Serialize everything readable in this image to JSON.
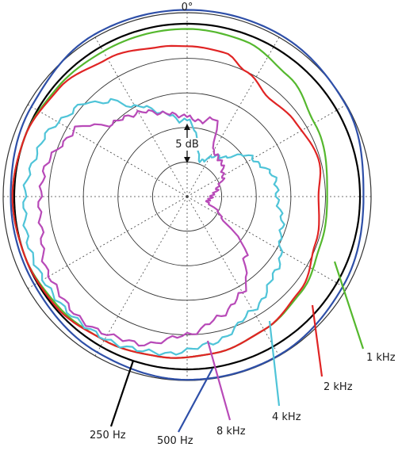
{
  "chart_data": {
    "type": "polar",
    "title": "",
    "angle_label": "0°",
    "scale_label": "5 dB",
    "grid": true,
    "rings": 5,
    "spokes": 12,
    "series": [
      {
        "name": "250 Hz",
        "color": "#000000",
        "values": [
          [
            0,
            5
          ],
          [
            30,
            5
          ],
          [
            60,
            5
          ],
          [
            90,
            5
          ],
          [
            120,
            5
          ],
          [
            150,
            5
          ],
          [
            180,
            5
          ],
          [
            210,
            5
          ],
          [
            240,
            5
          ],
          [
            270,
            5
          ],
          [
            300,
            5
          ],
          [
            330,
            5
          ]
        ]
      },
      {
        "name": "500 Hz",
        "color": "#2e4fa8",
        "values": [
          [
            0,
            5.4
          ],
          [
            30,
            5.4
          ],
          [
            60,
            5.3
          ],
          [
            90,
            5.1
          ],
          [
            120,
            5.2
          ],
          [
            150,
            5.3
          ],
          [
            180,
            5.3
          ],
          [
            210,
            5.2
          ],
          [
            240,
            5.1
          ],
          [
            270,
            5.1
          ],
          [
            300,
            5.2
          ],
          [
            330,
            5.4
          ]
        ]
      },
      {
        "name": "1 kHz",
        "color": "#55b82e",
        "values": [
          [
            0,
            4.85
          ],
          [
            20,
            4.8
          ],
          [
            40,
            4.55
          ],
          [
            60,
            4.25
          ],
          [
            90,
            4.05
          ],
          [
            110,
            4.1
          ],
          [
            130,
            4.3
          ],
          [
            150,
            4.45
          ],
          [
            170,
            4.6
          ],
          [
            190,
            4.7
          ],
          [
            210,
            4.8
          ],
          [
            230,
            4.9
          ],
          [
            250,
            5.0
          ],
          [
            270,
            5.05
          ],
          [
            290,
            5.0
          ],
          [
            310,
            4.9
          ],
          [
            330,
            4.85
          ],
          [
            350,
            4.85
          ]
        ]
      },
      {
        "name": "2 kHz",
        "color": "#e02424",
        "values": [
          [
            0,
            4.35
          ],
          [
            15,
            4.3
          ],
          [
            25,
            4.0
          ],
          [
            40,
            3.7
          ],
          [
            55,
            3.8
          ],
          [
            75,
            3.95
          ],
          [
            90,
            3.8
          ],
          [
            110,
            3.95
          ],
          [
            130,
            4.25
          ],
          [
            150,
            4.45
          ],
          [
            170,
            4.6
          ],
          [
            190,
            4.7
          ],
          [
            210,
            4.8
          ],
          [
            230,
            4.95
          ],
          [
            250,
            5.0
          ],
          [
            270,
            5.05
          ],
          [
            290,
            5.0
          ],
          [
            310,
            4.85
          ],
          [
            330,
            4.6
          ],
          [
            350,
            4.4
          ]
        ]
      },
      {
        "name": "4 kHz",
        "color": "#4fc4d8",
        "values": [
          [
            0,
            2.2
          ],
          [
            20,
            1.1
          ],
          [
            40,
            1.5
          ],
          [
            60,
            2.2
          ],
          [
            80,
            2.6
          ],
          [
            90,
            2.6
          ],
          [
            110,
            2.9
          ],
          [
            130,
            3.35
          ],
          [
            150,
            3.8
          ],
          [
            170,
            4.3
          ],
          [
            190,
            4.6
          ],
          [
            210,
            4.75
          ],
          [
            230,
            4.8
          ],
          [
            250,
            4.8
          ],
          [
            270,
            4.7
          ],
          [
            290,
            4.5
          ],
          [
            310,
            4.1
          ],
          [
            320,
            3.6
          ],
          [
            330,
            3.0
          ],
          [
            345,
            2.5
          ],
          [
            355,
            2.2
          ]
        ]
      },
      {
        "name": "8 kHz",
        "color": "#b84ab8",
        "values": [
          [
            0,
            2.3
          ],
          [
            10,
            2.2
          ],
          [
            20,
            2.4
          ],
          [
            30,
            1.5
          ],
          [
            45,
            1.4
          ],
          [
            60,
            1.2
          ],
          [
            75,
            0.9
          ],
          [
            90,
            0.7
          ],
          [
            105,
            0.6
          ],
          [
            120,
            1.1
          ],
          [
            135,
            2.4
          ],
          [
            150,
            3.2
          ],
          [
            165,
            3.6
          ],
          [
            180,
            4.0
          ],
          [
            200,
            4.5
          ],
          [
            220,
            4.7
          ],
          [
            240,
            4.6
          ],
          [
            260,
            4.3
          ],
          [
            280,
            4.2
          ],
          [
            300,
            3.8
          ],
          [
            315,
            3.0
          ],
          [
            330,
            2.8
          ],
          [
            345,
            2.5
          ],
          [
            355,
            2.35
          ]
        ]
      }
    ],
    "labels": [
      {
        "text": "1 kHz",
        "series": "1 kHz"
      },
      {
        "text": "2 kHz",
        "series": "2 kHz"
      },
      {
        "text": "4 kHz",
        "series": "4 kHz"
      },
      {
        "text": "8 kHz",
        "series": "8 kHz"
      },
      {
        "text": "500 Hz",
        "series": "500 Hz"
      },
      {
        "text": "250 Hz",
        "series": "250 Hz"
      }
    ]
  }
}
